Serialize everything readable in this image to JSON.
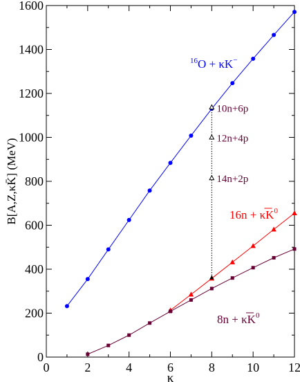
{
  "chart_data": {
    "type": "line",
    "xlabel": "κ",
    "ylabel": "B[A,Z,κK̄] (MeV)",
    "xlim": [
      0,
      12
    ],
    "ylim": [
      0,
      1600
    ],
    "x_ticks": [
      0,
      2,
      4,
      6,
      8,
      10,
      12
    ],
    "y_ticks": [
      0,
      200,
      400,
      600,
      800,
      1000,
      1200,
      1400,
      1600
    ],
    "grid": false,
    "series": [
      {
        "name": "16O + κK−",
        "color": "#0000ff",
        "marker": "circle",
        "x": [
          1,
          2,
          3,
          4,
          5,
          6,
          7,
          8,
          9,
          10,
          11,
          12
        ],
        "y": [
          232,
          355,
          490,
          624,
          758,
          884,
          1008,
          1130,
          1247,
          1358,
          1466,
          1571
        ]
      },
      {
        "name": "16n + κK̄0",
        "color": "#ff0000",
        "marker": "triangle",
        "x": [
          6,
          7,
          8,
          9,
          10,
          11,
          12
        ],
        "y": [
          213,
          285,
          358,
          432,
          506,
          581,
          655
        ]
      },
      {
        "name": "8n + κK̄0",
        "color": "#660033",
        "marker": "square",
        "x": [
          2,
          3,
          4,
          5,
          6,
          7,
          8,
          9,
          10,
          11,
          12
        ],
        "y": [
          13,
          53,
          100,
          155,
          208,
          260,
          312,
          360,
          407,
          452,
          492
        ]
      }
    ],
    "vertical_points": {
      "x": 8,
      "color": "#000000",
      "y": [
        1137,
        1000,
        815
      ]
    },
    "annotations": [
      {
        "label": "10n+6p",
        "x": 8,
        "y": 1135
      },
      {
        "label": "12n+4p",
        "x": 8,
        "y": 1000
      },
      {
        "label": "14n+2p",
        "x": 8,
        "y": 815
      }
    ],
    "series_labels": [
      {
        "base": "O + κK",
        "pre_sup": "16",
        "sup": "−",
        "color": "#0000ff",
        "overbar": false
      },
      {
        "base": "16n + κK",
        "pre_sup": "",
        "sup": "0",
        "color": "#ff0000",
        "overbar": true
      },
      {
        "base": "8n + κK",
        "pre_sup": "",
        "sup": "0",
        "color": "#660033",
        "overbar": true
      }
    ],
    "ylabel_parts": {
      "prefix": "B[A,Z,κK",
      "suffix": "] (MeV)"
    }
  }
}
